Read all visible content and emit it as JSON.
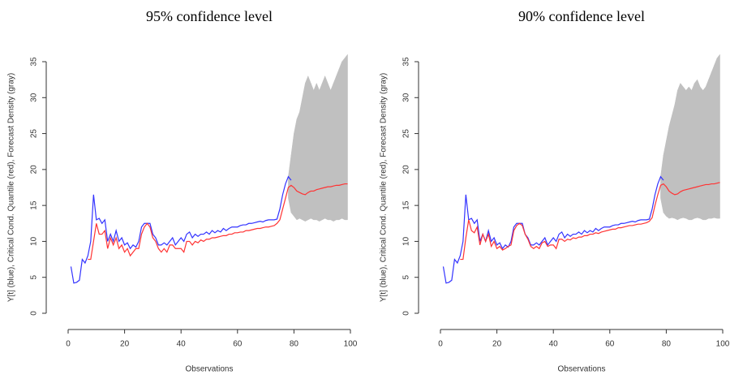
{
  "chart_data": [
    {
      "type": "line",
      "title": "95% confidence level",
      "x_label": "Observations",
      "y_label": "Y[t] (blue), Critical Cond. Quantile (red), Forecast Density (gray)",
      "xlim": [
        0,
        100
      ],
      "xticks": [
        0,
        20,
        40,
        60,
        80,
        100
      ],
      "ylim": [
        0,
        35
      ],
      "yticks": [
        0,
        5,
        10,
        15,
        20,
        25,
        30,
        35
      ],
      "band": {
        "color": "#c0c0c0",
        "x": [
          78,
          79,
          80,
          81,
          82,
          83,
          84,
          85,
          86,
          87,
          88,
          89,
          90,
          91,
          92,
          93,
          94,
          95,
          96,
          97,
          98,
          99
        ],
        "lower": [
          16,
          14,
          13.5,
          13,
          13.2,
          13,
          12.8,
          13,
          13.2,
          13,
          13,
          12.8,
          13,
          13.2,
          13,
          13,
          12.8,
          13,
          13,
          13.2,
          13,
          13
        ],
        "upper": [
          19,
          22,
          25,
          27,
          28,
          30,
          32,
          33,
          32,
          31,
          32,
          31,
          32,
          33,
          32,
          31,
          32,
          33,
          34,
          35,
          35.5,
          36
        ]
      },
      "series": [
        {
          "color": "#3333ff",
          "x": [
            1,
            2,
            3,
            4,
            5,
            6,
            7,
            8,
            9,
            10,
            11,
            12,
            13,
            14,
            15,
            16,
            17,
            18,
            19,
            20,
            21,
            22,
            23,
            24,
            25,
            26,
            27,
            28,
            29,
            30,
            31,
            32,
            33,
            34,
            35,
            36,
            37,
            38,
            39,
            40,
            41,
            42,
            43,
            44,
            45,
            46,
            47,
            48,
            49,
            50,
            51,
            52,
            53,
            54,
            55,
            56,
            57,
            58,
            59,
            60,
            61,
            62,
            63,
            64,
            65,
            66,
            67,
            68,
            69,
            70,
            71,
            72,
            73,
            74,
            75,
            76,
            77,
            78,
            79
          ],
          "values": [
            6.5,
            4.2,
            4.3,
            4.6,
            7.5,
            7,
            8,
            10,
            16.5,
            13,
            13.2,
            12.5,
            13,
            10,
            11,
            10,
            11.5,
            10,
            10.5,
            9.5,
            9.8,
            9,
            9.5,
            9.2,
            10,
            12,
            12.5,
            12.5,
            12.5,
            11,
            10.5,
            9.5,
            9.5,
            9.8,
            9.5,
            10,
            10.5,
            9.5,
            10,
            10.5,
            10,
            11,
            11.3,
            10.5,
            11,
            10.7,
            11,
            11,
            11.3,
            11,
            11.5,
            11.2,
            11.5,
            11.3,
            11.8,
            11.5,
            11.8,
            12,
            12,
            12,
            12.2,
            12.3,
            12.3,
            12.5,
            12.5,
            12.6,
            12.7,
            12.8,
            12.7,
            12.9,
            13,
            13,
            13,
            13.1,
            14.5,
            16.5,
            18,
            19,
            18.5
          ]
        },
        {
          "color": "#ff3333",
          "x": [
            7,
            8,
            9,
            10,
            11,
            12,
            13,
            14,
            15,
            16,
            17,
            18,
            19,
            20,
            21,
            22,
            23,
            24,
            25,
            26,
            27,
            28,
            29,
            30,
            31,
            32,
            33,
            34,
            35,
            36,
            37,
            38,
            39,
            40,
            41,
            42,
            43,
            44,
            45,
            46,
            47,
            48,
            49,
            50,
            51,
            52,
            53,
            54,
            55,
            56,
            57,
            58,
            59,
            60,
            61,
            62,
            63,
            64,
            65,
            66,
            67,
            68,
            69,
            70,
            71,
            72,
            73,
            74,
            75,
            76,
            77,
            78,
            79,
            80,
            81,
            82,
            83,
            84,
            85,
            86,
            87,
            88,
            89,
            90,
            91,
            92,
            93,
            94,
            95,
            96,
            97,
            98,
            99
          ],
          "values": [
            7.5,
            7.5,
            10,
            12.5,
            11,
            11,
            11.5,
            9,
            10.5,
            9.5,
            10.5,
            9,
            9.5,
            8.5,
            9,
            8,
            8.5,
            9,
            9,
            11,
            12,
            12.5,
            12,
            10.5,
            10,
            9,
            8.5,
            9,
            8.5,
            9.5,
            9.5,
            9,
            9,
            9,
            8.5,
            10,
            10,
            9.5,
            10,
            9.8,
            10.2,
            10,
            10.3,
            10.3,
            10.5,
            10.5,
            10.6,
            10.7,
            10.8,
            10.8,
            11,
            11,
            11.2,
            11.2,
            11.3,
            11.3,
            11.5,
            11.5,
            11.6,
            11.7,
            11.8,
            11.8,
            11.9,
            12,
            12,
            12.1,
            12.2,
            12.5,
            13,
            14.5,
            16,
            17.5,
            17.8,
            17.5,
            17,
            16.8,
            16.6,
            16.5,
            16.8,
            17,
            17,
            17.2,
            17.3,
            17.4,
            17.5,
            17.6,
            17.6,
            17.7,
            17.8,
            17.8,
            17.9,
            18,
            18
          ]
        }
      ]
    },
    {
      "type": "line",
      "title": "90% confidence level",
      "x_label": "Observations",
      "y_label": "Y[t] (blue), Critical Cond. Quantile (red), Forecast Density (gray)",
      "xlim": [
        0,
        100
      ],
      "xticks": [
        0,
        20,
        40,
        60,
        80,
        100
      ],
      "ylim": [
        0,
        35
      ],
      "yticks": [
        0,
        5,
        10,
        15,
        20,
        25,
        30,
        35
      ],
      "band": {
        "color": "#c0c0c0",
        "x": [
          78,
          79,
          80,
          81,
          82,
          83,
          84,
          85,
          86,
          87,
          88,
          89,
          90,
          91,
          92,
          93,
          94,
          95,
          96,
          97,
          98,
          99
        ],
        "lower": [
          16,
          14,
          13.5,
          13.2,
          13.3,
          13.2,
          13,
          13.2,
          13.3,
          13.2,
          13,
          13,
          13.2,
          13.3,
          13.2,
          13,
          13,
          13.2,
          13.2,
          13.3,
          13.2,
          13.2
        ],
        "upper": [
          19,
          22,
          24,
          26,
          27.5,
          29,
          31,
          32,
          31.5,
          31,
          31.5,
          31,
          32,
          32.5,
          31.5,
          31,
          31.5,
          32.5,
          33.5,
          34.5,
          35.5,
          36
        ]
      },
      "series": [
        {
          "color": "#3333ff",
          "x": [
            1,
            2,
            3,
            4,
            5,
            6,
            7,
            8,
            9,
            10,
            11,
            12,
            13,
            14,
            15,
            16,
            17,
            18,
            19,
            20,
            21,
            22,
            23,
            24,
            25,
            26,
            27,
            28,
            29,
            30,
            31,
            32,
            33,
            34,
            35,
            36,
            37,
            38,
            39,
            40,
            41,
            42,
            43,
            44,
            45,
            46,
            47,
            48,
            49,
            50,
            51,
            52,
            53,
            54,
            55,
            56,
            57,
            58,
            59,
            60,
            61,
            62,
            63,
            64,
            65,
            66,
            67,
            68,
            69,
            70,
            71,
            72,
            73,
            74,
            75,
            76,
            77,
            78,
            79
          ],
          "values": [
            6.5,
            4.2,
            4.3,
            4.6,
            7.5,
            7,
            8,
            10,
            16.5,
            13,
            13.2,
            12.5,
            13,
            10,
            11,
            10,
            11.5,
            10,
            10.5,
            9.5,
            9.8,
            9,
            9.5,
            9.2,
            10,
            12,
            12.5,
            12.5,
            12.5,
            11,
            10.5,
            9.5,
            9.5,
            9.8,
            9.5,
            10,
            10.5,
            9.5,
            10,
            10.5,
            10,
            11,
            11.3,
            10.5,
            11,
            10.7,
            11,
            11,
            11.3,
            11,
            11.5,
            11.2,
            11.5,
            11.3,
            11.8,
            11.5,
            11.8,
            12,
            12,
            12,
            12.2,
            12.3,
            12.3,
            12.5,
            12.5,
            12.6,
            12.7,
            12.8,
            12.7,
            12.9,
            13,
            13,
            13,
            13.1,
            14.5,
            16.5,
            18,
            19,
            18.5
          ]
        },
        {
          "color": "#ff3333",
          "x": [
            7,
            8,
            9,
            10,
            11,
            12,
            13,
            14,
            15,
            16,
            17,
            18,
            19,
            20,
            21,
            22,
            23,
            24,
            25,
            26,
            27,
            28,
            29,
            30,
            31,
            32,
            33,
            34,
            35,
            36,
            37,
            38,
            39,
            40,
            41,
            42,
            43,
            44,
            45,
            46,
            47,
            48,
            49,
            50,
            51,
            52,
            53,
            54,
            55,
            56,
            57,
            58,
            59,
            60,
            61,
            62,
            63,
            64,
            65,
            66,
            67,
            68,
            69,
            70,
            71,
            72,
            73,
            74,
            75,
            76,
            77,
            78,
            79,
            80,
            81,
            82,
            83,
            84,
            85,
            86,
            87,
            88,
            89,
            90,
            91,
            92,
            93,
            94,
            95,
            96,
            97,
            98,
            99
          ],
          "values": [
            7.5,
            7.5,
            10.5,
            13,
            11.5,
            11.2,
            12,
            9.5,
            11,
            10,
            11,
            9.3,
            10,
            9,
            9.3,
            8.8,
            9,
            9.3,
            9.5,
            11.5,
            12.2,
            12.5,
            12.2,
            11,
            10.3,
            9.3,
            9,
            9.3,
            9,
            9.8,
            10,
            9.3,
            9.5,
            9.5,
            9,
            10.3,
            10.3,
            10,
            10.3,
            10.2,
            10.5,
            10.4,
            10.6,
            10.6,
            10.8,
            10.8,
            11,
            11,
            11.2,
            11.1,
            11.3,
            11.4,
            11.5,
            11.6,
            11.7,
            11.7,
            11.9,
            11.9,
            12,
            12.1,
            12.2,
            12.2,
            12.3,
            12.4,
            12.4,
            12.5,
            12.6,
            12.8,
            13.3,
            15,
            16.5,
            17.8,
            18,
            17.6,
            17,
            16.7,
            16.5,
            16.6,
            16.9,
            17.1,
            17.2,
            17.3,
            17.4,
            17.5,
            17.6,
            17.7,
            17.8,
            17.9,
            17.9,
            18,
            18,
            18.1,
            18.2
          ]
        }
      ]
    }
  ]
}
